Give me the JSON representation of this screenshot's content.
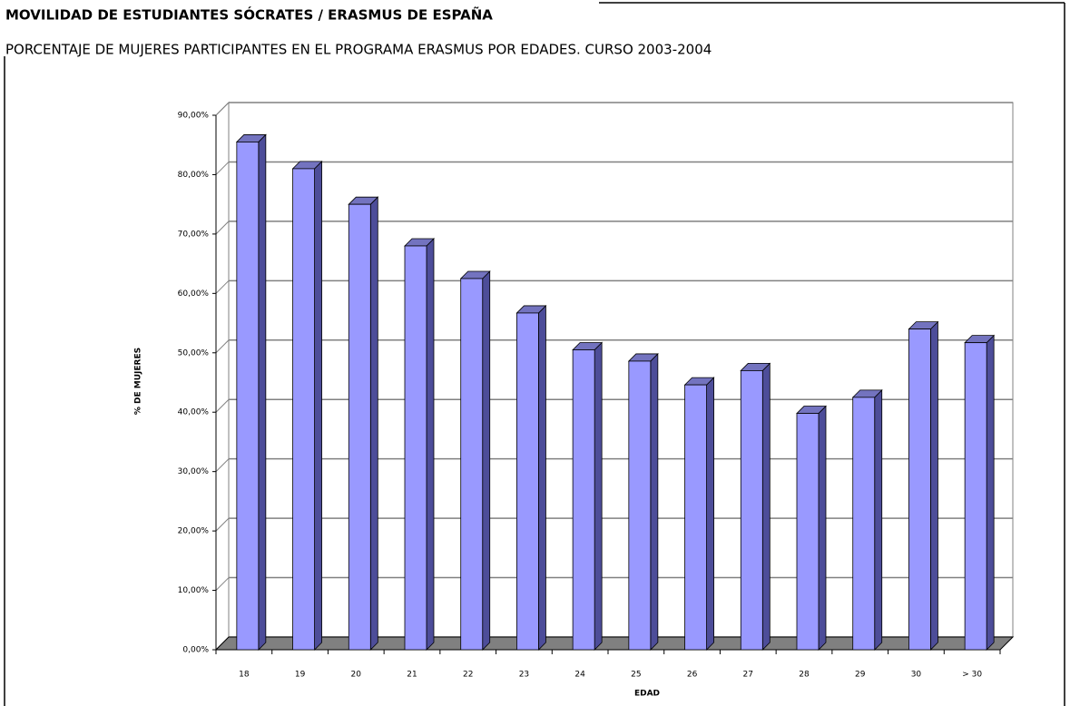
{
  "chart_data": {
    "type": "bar3d",
    "title": "MOVILIDAD DE ESTUDIANTES SÓCRATES / ERASMUS DE ESPAÑA",
    "subtitle": "PORCENTAJE DE MUJERES PARTICIPANTES EN EL PROGRAMA ERASMUS POR EDADES. CURSO 2003-2004",
    "x_label": "EDAD",
    "y_label": "% DE MUJERES",
    "categories": [
      "18",
      "19",
      "20",
      "21",
      "22",
      "23",
      "24",
      "25",
      "26",
      "27",
      "28",
      "29",
      "30",
      "> 30"
    ],
    "values": [
      85.5,
      81,
      75,
      68,
      62.5,
      56.7,
      50.5,
      48.6,
      44.6,
      47,
      39.8,
      42.5,
      54,
      51.7
    ],
    "color": "#9999ff",
    "ylim": [
      0,
      90
    ],
    "yticks": [
      {
        "value": 0,
        "label": "0,00%"
      },
      {
        "value": 10,
        "label": "10,00%"
      },
      {
        "value": 20,
        "label": "20,00%"
      },
      {
        "value": 30,
        "label": "30,00%"
      },
      {
        "value": 40,
        "label": "40,00%"
      },
      {
        "value": 50,
        "label": "50,00%"
      },
      {
        "value": 60,
        "label": "60,00%"
      },
      {
        "value": 70,
        "label": "70,00%"
      },
      {
        "value": 80,
        "label": "80,00%"
      },
      {
        "value": 90,
        "label": "90,00%"
      }
    ],
    "grid": true
  }
}
